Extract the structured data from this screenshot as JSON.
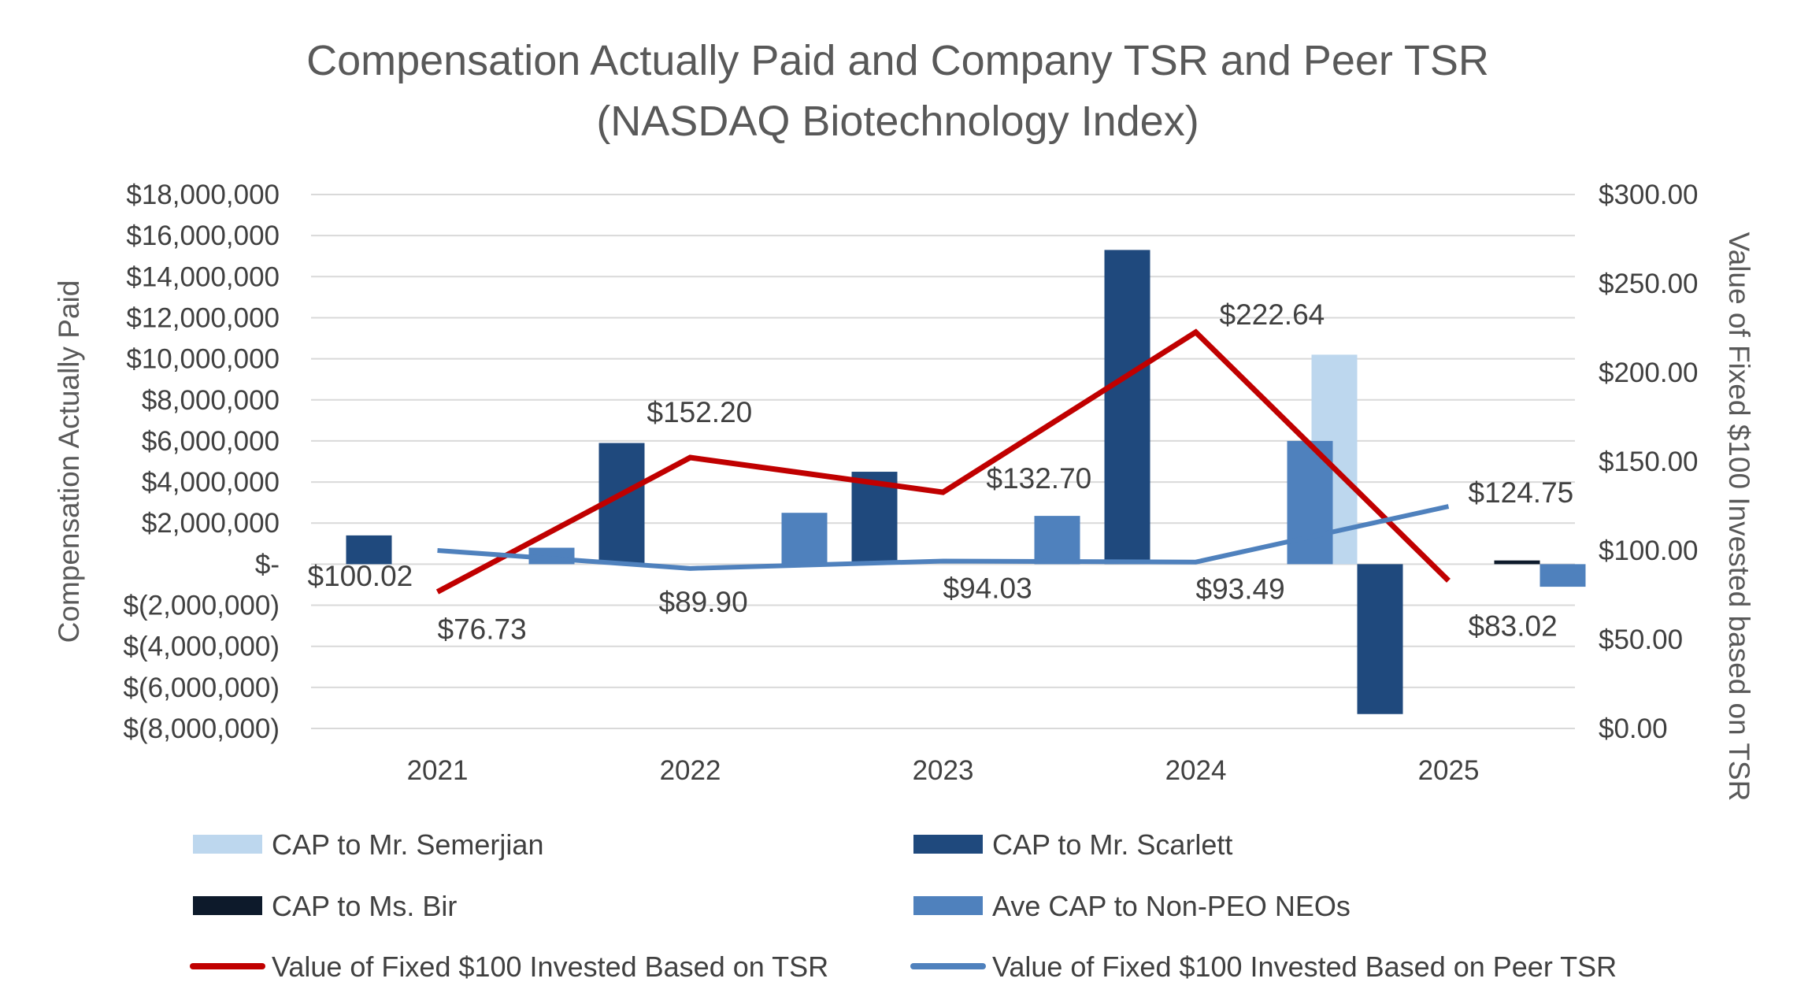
{
  "chart_data": {
    "type": "bar",
    "title": "Compensation Actually Paid and Company TSR and Peer TSR",
    "subtitle": "(NASDAQ Biotechnology Index)",
    "categories": [
      "2021",
      "2022",
      "2023",
      "2024",
      "2025"
    ],
    "ylabel": "Compensation Actually Paid",
    "y2label": "Value of Fixed $100 Invested based on TSR",
    "ylim": [
      -8000000,
      18000000
    ],
    "y2lim": [
      0,
      300
    ],
    "yticks": [
      {
        "value": 18000000,
        "label": "$18,000,000"
      },
      {
        "value": 16000000,
        "label": "$16,000,000"
      },
      {
        "value": 14000000,
        "label": "$14,000,000"
      },
      {
        "value": 12000000,
        "label": "$12,000,000"
      },
      {
        "value": 10000000,
        "label": "$10,000,000"
      },
      {
        "value": 8000000,
        "label": "$8,000,000"
      },
      {
        "value": 6000000,
        "label": "$6,000,000"
      },
      {
        "value": 4000000,
        "label": "$4,000,000"
      },
      {
        "value": 2000000,
        "label": "$2,000,000"
      },
      {
        "value": 0,
        "label": "$-"
      },
      {
        "value": -2000000,
        "label": "$(2,000,000)"
      },
      {
        "value": -4000000,
        "label": "$(4,000,000)"
      },
      {
        "value": -6000000,
        "label": "$(6,000,000)"
      },
      {
        "value": -8000000,
        "label": "$(8,000,000)"
      }
    ],
    "y2ticks": [
      {
        "value": 300,
        "label": "$300.00"
      },
      {
        "value": 250,
        "label": "$250.00"
      },
      {
        "value": 200,
        "label": "$200.00"
      },
      {
        "value": 150,
        "label": "$150.00"
      },
      {
        "value": 100,
        "label": "$100.00"
      },
      {
        "value": 50,
        "label": "$50.00"
      },
      {
        "value": 0,
        "label": "$0.00"
      }
    ],
    "grid": true,
    "legend_position": "bottom",
    "bar_series": [
      {
        "name": "CAP to Mr. Semerjian",
        "color": "#bdd7ee",
        "values": [
          null,
          null,
          null,
          null,
          10200000
        ]
      },
      {
        "name": "CAP to Mr. Scarlett",
        "color": "#1f497d",
        "values": [
          1400000,
          5900000,
          4500000,
          15300000,
          -7300000
        ]
      },
      {
        "name": "CAP to Ms. Bir",
        "color": "#0d1a2b",
        "values": [
          null,
          null,
          null,
          null,
          180000
        ]
      },
      {
        "name": "Ave CAP to Non-PEO NEOs",
        "color": "#4f81bd",
        "values": [
          800000,
          2500000,
          2350000,
          6000000,
          -1100000
        ]
      }
    ],
    "line_series": [
      {
        "name": "Value of Fixed $100 Invested Based on TSR",
        "color": "#c00000",
        "axis": "secondary",
        "values": [
          76.73,
          152.2,
          132.7,
          222.64,
          83.02
        ],
        "labels": [
          "$76.73",
          "$152.20",
          "$132.70",
          "$222.64",
          "$83.02"
        ]
      },
      {
        "name": "Value of Fixed $100 Invested Based on Peer TSR",
        "color": "#4f81bd",
        "axis": "secondary",
        "values": [
          100.02,
          89.9,
          94.03,
          93.49,
          124.75
        ],
        "labels": [
          "$100.02",
          "$89.90",
          "$94.03",
          "$93.49",
          "$124.75"
        ]
      }
    ],
    "legend": [
      "CAP to Mr. Semerjian",
      "CAP to Mr. Scarlett",
      "CAP to Ms. Bir",
      "Ave CAP to Non-PEO NEOs",
      "Value of Fixed $100 Invested Based on TSR",
      "Value of Fixed $100 Invested Based on Peer TSR"
    ]
  }
}
